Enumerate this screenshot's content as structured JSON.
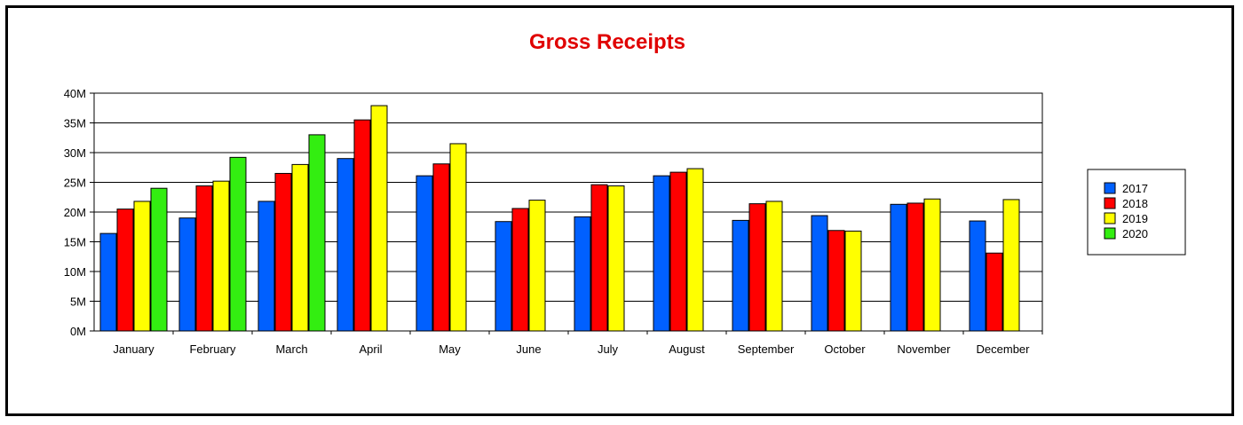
{
  "chart_data": {
    "type": "bar",
    "title": "Gross Receipts",
    "title_color": "#e00000",
    "xlabel": "",
    "ylabel": "",
    "ylim": [
      0,
      40
    ],
    "yticks": [
      {
        "value": 0,
        "label": "0M"
      },
      {
        "value": 5,
        "label": "5M"
      },
      {
        "value": 10,
        "label": "10M"
      },
      {
        "value": 15,
        "label": "15M"
      },
      {
        "value": 20,
        "label": "20M"
      },
      {
        "value": 25,
        "label": "25M"
      },
      {
        "value": 30,
        "label": "30M"
      },
      {
        "value": 35,
        "label": "35M"
      },
      {
        "value": 40,
        "label": "40M"
      }
    ],
    "grid": true,
    "legend_position": "right",
    "categories": [
      "January",
      "February",
      "March",
      "April",
      "May",
      "June",
      "July",
      "August",
      "September",
      "October",
      "November",
      "December"
    ],
    "series": [
      {
        "name": "2017",
        "color": "#0060ff",
        "values": [
          16.4,
          19.0,
          21.8,
          29.0,
          26.1,
          18.4,
          19.2,
          26.1,
          18.6,
          19.4,
          21.3,
          18.5
        ]
      },
      {
        "name": "2018",
        "color": "#ff0000",
        "values": [
          20.5,
          24.4,
          26.5,
          35.5,
          28.1,
          20.6,
          24.6,
          26.7,
          21.4,
          16.9,
          21.5,
          13.1
        ]
      },
      {
        "name": "2019",
        "color": "#ffff00",
        "values": [
          21.8,
          25.2,
          28.0,
          37.9,
          31.5,
          22.0,
          24.4,
          27.3,
          21.8,
          16.8,
          22.2,
          22.1
        ]
      },
      {
        "name": "2020",
        "color": "#33ee11",
        "values": [
          24.0,
          29.2,
          33.0,
          null,
          null,
          null,
          null,
          null,
          null,
          null,
          null,
          null
        ]
      }
    ]
  }
}
